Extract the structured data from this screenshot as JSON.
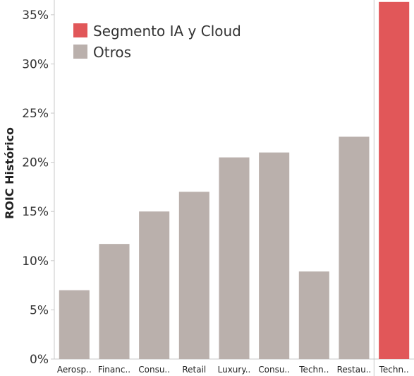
{
  "chart_data": {
    "type": "bar",
    "ylabel": "ROIC Histórico",
    "ylim": [
      0,
      36.5
    ],
    "yticks": [
      0,
      5,
      10,
      15,
      20,
      25,
      30,
      35
    ],
    "ytick_labels": [
      "0%",
      "5%",
      "10%",
      "15%",
      "20%",
      "25%",
      "30%",
      "35%"
    ],
    "categories": [
      "Aerosp..",
      "Financ..",
      "Consu..",
      "Retail",
      "Luxury..",
      "Consu..",
      "Techn..",
      "Restau..",
      "Techn.."
    ],
    "values": [
      7.0,
      11.7,
      15.0,
      17.0,
      20.5,
      21.0,
      8.9,
      22.6,
      36.3
    ],
    "groups": [
      "Otros",
      "Otros",
      "Otros",
      "Otros",
      "Otros",
      "Otros",
      "Otros",
      "Otros",
      "Segmento IA y Cloud"
    ],
    "legend": {
      "placement": "top-left",
      "entries": [
        {
          "label": "Segmento IA y Cloud",
          "color": "#e15759"
        },
        {
          "label": "Otros",
          "color": "#bab0ac"
        }
      ]
    },
    "colors": {
      "Segmento IA y Cloud": "#e15759",
      "Otros": "#bab0ac"
    },
    "grid": false
  }
}
